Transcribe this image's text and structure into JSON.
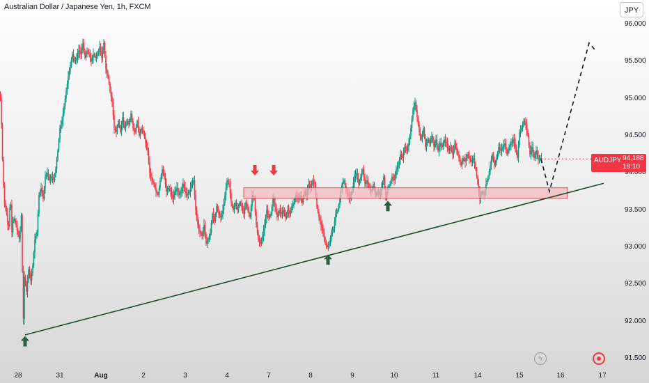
{
  "header": {
    "title": "Australian Dollar / Japanese Yen, 1h, FXCM"
  },
  "scale": {
    "currency": "JPY"
  },
  "price_label": {
    "symbol": "AUDJPY",
    "value": "94.188",
    "countdown": "18:10"
  },
  "icons": {
    "bolt": "lightning-icon",
    "target": "target-icon"
  },
  "colors": {
    "up": "#089981",
    "down": "#f23645",
    "arrow_up": "#2e5e3a",
    "arrow_down": "#f23645",
    "zone_fill": "#f5b8bc",
    "zone_border": "#e0505a",
    "trendline": "#1f4d2b"
  },
  "chart_data": {
    "type": "candlestick",
    "title": "Australian Dollar / Japanese Yen, 1h, FXCM",
    "ylim": [
      91.5,
      96.0
    ],
    "y_ticks": [
      "96.000",
      "95.500",
      "95.000",
      "94.500",
      "94.000",
      "93.500",
      "93.000",
      "92.500",
      "92.000",
      "91.500"
    ],
    "x_ticks": [
      {
        "label": "28",
        "bold": false
      },
      {
        "label": "31",
        "bold": false
      },
      {
        "label": "Aug",
        "bold": true
      },
      {
        "label": "2",
        "bold": false
      },
      {
        "label": "3",
        "bold": false
      },
      {
        "label": "4",
        "bold": false
      },
      {
        "label": "7",
        "bold": false
      },
      {
        "label": "8",
        "bold": false
      },
      {
        "label": "9",
        "bold": false
      },
      {
        "label": "10",
        "bold": false
      },
      {
        "label": "11",
        "bold": false
      },
      {
        "label": "14",
        "bold": false
      },
      {
        "label": "15",
        "bold": false
      },
      {
        "label": "16",
        "bold": false
      },
      {
        "label": "17",
        "bold": false
      }
    ],
    "path": [
      [
        0,
        95.05
      ],
      [
        2,
        95.0
      ],
      [
        4,
        94.3
      ],
      [
        7,
        93.6
      ],
      [
        10,
        93.5
      ],
      [
        13,
        93.2
      ],
      [
        16,
        93.7
      ],
      [
        18,
        93.2
      ],
      [
        20,
        93.4
      ],
      [
        23,
        93.35
      ],
      [
        26,
        93.2
      ],
      [
        29,
        93.1
      ],
      [
        32,
        93.5
      ],
      [
        34,
        91.85
      ],
      [
        36,
        92.6
      ],
      [
        39,
        92.4
      ],
      [
        42,
        92.7
      ],
      [
        45,
        92.55
      ],
      [
        48,
        92.75
      ],
      [
        51,
        93.1
      ],
      [
        54,
        93.2
      ],
      [
        57,
        93.7
      ],
      [
        60,
        93.8
      ],
      [
        63,
        93.65
      ],
      [
        66,
        93.95
      ],
      [
        69,
        94.0
      ],
      [
        72,
        93.9
      ],
      [
        75,
        93.95
      ],
      [
        78,
        93.9
      ],
      [
        81,
        94.05
      ],
      [
        84,
        94.3
      ],
      [
        87,
        94.6
      ],
      [
        90,
        94.7
      ],
      [
        93,
        94.9
      ],
      [
        96,
        95.1
      ],
      [
        99,
        95.3
      ],
      [
        102,
        95.45
      ],
      [
        105,
        95.6
      ],
      [
        108,
        95.5
      ],
      [
        111,
        95.55
      ],
      [
        114,
        95.65
      ],
      [
        117,
        95.6
      ],
      [
        120,
        95.75
      ],
      [
        123,
        95.55
      ],
      [
        126,
        95.65
      ],
      [
        129,
        95.6
      ],
      [
        132,
        95.5
      ],
      [
        135,
        95.6
      ],
      [
        138,
        95.55
      ],
      [
        141,
        95.6
      ],
      [
        144,
        95.7
      ],
      [
        147,
        95.55
      ],
      [
        150,
        95.75
      ],
      [
        153,
        95.4
      ],
      [
        156,
        95.3
      ],
      [
        159,
        95.1
      ],
      [
        162,
        94.95
      ],
      [
        165,
        94.6
      ],
      [
        168,
        94.55
      ],
      [
        171,
        94.7
      ],
      [
        174,
        94.55
      ],
      [
        177,
        94.75
      ],
      [
        180,
        94.6
      ],
      [
        183,
        94.7
      ],
      [
        186,
        94.65
      ],
      [
        189,
        94.8
      ],
      [
        192,
        94.6
      ],
      [
        195,
        94.55
      ],
      [
        198,
        94.7
      ],
      [
        201,
        94.5
      ],
      [
        204,
        94.6
      ],
      [
        207,
        94.55
      ],
      [
        210,
        94.4
      ],
      [
        213,
        94.3
      ],
      [
        216,
        94.0
      ],
      [
        219,
        93.9
      ],
      [
        222,
        93.85
      ],
      [
        225,
        93.75
      ],
      [
        228,
        93.7
      ],
      [
        231,
        93.9
      ],
      [
        234,
        94.05
      ],
      [
        237,
        93.95
      ],
      [
        240,
        93.75
      ],
      [
        243,
        93.8
      ],
      [
        246,
        93.75
      ],
      [
        249,
        93.65
      ],
      [
        252,
        93.75
      ],
      [
        255,
        93.8
      ],
      [
        258,
        93.7
      ],
      [
        261,
        93.75
      ],
      [
        264,
        93.85
      ],
      [
        267,
        93.75
      ],
      [
        270,
        93.7
      ],
      [
        273,
        93.75
      ],
      [
        276,
        93.85
      ],
      [
        279,
        93.9
      ],
      [
        282,
        93.5
      ],
      [
        285,
        93.3
      ],
      [
        288,
        93.2
      ],
      [
        291,
        93.15
      ],
      [
        294,
        93.3
      ],
      [
        297,
        93.05
      ],
      [
        300,
        93.1
      ],
      [
        303,
        93.2
      ],
      [
        306,
        93.45
      ],
      [
        309,
        93.35
      ],
      [
        312,
        93.55
      ],
      [
        315,
        93.45
      ],
      [
        318,
        93.4
      ],
      [
        321,
        93.5
      ],
      [
        324,
        93.7
      ],
      [
        327,
        93.9
      ],
      [
        330,
        93.85
      ],
      [
        333,
        93.6
      ],
      [
        336,
        93.5
      ],
      [
        339,
        93.6
      ],
      [
        342,
        93.5
      ],
      [
        345,
        93.6
      ],
      [
        348,
        93.55
      ],
      [
        351,
        93.45
      ],
      [
        354,
        93.6
      ],
      [
        357,
        93.5
      ],
      [
        360,
        93.4
      ],
      [
        363,
        93.7
      ],
      [
        366,
        93.65
      ],
      [
        369,
        93.3
      ],
      [
        372,
        93.1
      ],
      [
        375,
        93.05
      ],
      [
        378,
        93.15
      ],
      [
        381,
        93.3
      ],
      [
        384,
        93.5
      ],
      [
        387,
        93.4
      ],
      [
        390,
        93.45
      ],
      [
        393,
        93.65
      ],
      [
        396,
        93.55
      ],
      [
        399,
        93.4
      ],
      [
        402,
        93.5
      ],
      [
        405,
        93.45
      ],
      [
        408,
        93.5
      ],
      [
        411,
        93.4
      ],
      [
        414,
        93.5
      ],
      [
        417,
        93.45
      ],
      [
        420,
        93.55
      ],
      [
        423,
        93.6
      ],
      [
        426,
        93.7
      ],
      [
        429,
        93.65
      ],
      [
        432,
        93.7
      ],
      [
        435,
        93.6
      ],
      [
        438,
        93.75
      ],
      [
        441,
        93.7
      ],
      [
        444,
        93.85
      ],
      [
        447,
        93.8
      ],
      [
        450,
        93.9
      ],
      [
        453,
        93.85
      ],
      [
        456,
        93.55
      ],
      [
        459,
        93.4
      ],
      [
        462,
        93.3
      ],
      [
        465,
        93.2
      ],
      [
        468,
        93.05
      ],
      [
        471,
        93.0
      ],
      [
        474,
        93.05
      ],
      [
        477,
        93.2
      ],
      [
        480,
        93.25
      ],
      [
        483,
        93.45
      ],
      [
        486,
        93.5
      ],
      [
        489,
        93.65
      ],
      [
        492,
        93.85
      ],
      [
        495,
        93.9
      ],
      [
        498,
        93.75
      ],
      [
        501,
        93.7
      ],
      [
        504,
        93.65
      ],
      [
        507,
        93.8
      ],
      [
        510,
        93.95
      ],
      [
        513,
        94.0
      ],
      [
        516,
        93.85
      ],
      [
        519,
        93.95
      ],
      [
        522,
        94.05
      ],
      [
        525,
        93.85
      ],
      [
        528,
        93.9
      ],
      [
        531,
        93.8
      ],
      [
        534,
        93.75
      ],
      [
        537,
        93.85
      ],
      [
        540,
        93.7
      ],
      [
        543,
        93.75
      ],
      [
        546,
        93.7
      ],
      [
        549,
        93.8
      ],
      [
        552,
        93.95
      ],
      [
        555,
        93.65
      ],
      [
        558,
        93.8
      ],
      [
        561,
        93.85
      ],
      [
        564,
        93.95
      ],
      [
        567,
        93.9
      ],
      [
        570,
        94.05
      ],
      [
        573,
        94.1
      ],
      [
        576,
        94.25
      ],
      [
        579,
        94.2
      ],
      [
        582,
        94.35
      ],
      [
        585,
        94.3
      ],
      [
        588,
        94.4
      ],
      [
        591,
        94.6
      ],
      [
        594,
        94.85
      ],
      [
        597,
        94.95
      ],
      [
        600,
        94.75
      ],
      [
        603,
        94.55
      ],
      [
        606,
        94.45
      ],
      [
        609,
        94.6
      ],
      [
        612,
        94.35
      ],
      [
        615,
        94.45
      ],
      [
        618,
        94.4
      ],
      [
        621,
        94.5
      ],
      [
        624,
        94.35
      ],
      [
        627,
        94.45
      ],
      [
        630,
        94.3
      ],
      [
        633,
        94.4
      ],
      [
        636,
        94.35
      ],
      [
        639,
        94.45
      ],
      [
        642,
        94.4
      ],
      [
        645,
        94.3
      ],
      [
        648,
        94.35
      ],
      [
        651,
        94.25
      ],
      [
        654,
        94.4
      ],
      [
        657,
        94.3
      ],
      [
        660,
        94.2
      ],
      [
        663,
        94.1
      ],
      [
        666,
        94.2
      ],
      [
        669,
        94.15
      ],
      [
        672,
        94.25
      ],
      [
        675,
        94.2
      ],
      [
        678,
        94.15
      ],
      [
        681,
        94.2
      ],
      [
        684,
        94.05
      ],
      [
        687,
        93.85
      ],
      [
        690,
        93.65
      ],
      [
        693,
        93.75
      ],
      [
        696,
        93.7
      ],
      [
        699,
        93.85
      ],
      [
        702,
        93.95
      ],
      [
        705,
        94.1
      ],
      [
        708,
        94.25
      ],
      [
        711,
        94.1
      ],
      [
        714,
        94.2
      ],
      [
        717,
        94.35
      ],
      [
        720,
        94.3
      ],
      [
        723,
        94.35
      ],
      [
        726,
        94.4
      ],
      [
        729,
        94.25
      ],
      [
        732,
        94.35
      ],
      [
        735,
        94.4
      ],
      [
        738,
        94.45
      ],
      [
        741,
        94.35
      ],
      [
        744,
        94.2
      ],
      [
        747,
        94.55
      ],
      [
        750,
        94.6
      ],
      [
        753,
        94.7
      ],
      [
        756,
        94.65
      ],
      [
        759,
        94.5
      ],
      [
        762,
        94.25
      ],
      [
        765,
        94.35
      ],
      [
        768,
        94.2
      ],
      [
        771,
        94.3
      ],
      [
        774,
        94.18
      ],
      [
        777,
        94.2
      ]
    ],
    "support_zone": {
      "x_from": 350,
      "x_to": 815,
      "y_low": 93.66,
      "y_high": 93.8
    },
    "trendline": {
      "from": [
        36,
        91.82
      ],
      "to": [
        867,
        93.86
      ]
    },
    "projection": [
      [
        777,
        94.188
      ],
      [
        789,
        93.75
      ],
      [
        846,
        95.75
      ],
      [
        855,
        95.65
      ]
    ],
    "annotations": [
      {
        "type": "arrow-up",
        "x": 36,
        "y": 91.72
      },
      {
        "type": "arrow-down",
        "x": 366,
        "y": 94.05
      },
      {
        "type": "arrow-down",
        "x": 393,
        "y": 94.05
      },
      {
        "type": "arrow-up",
        "x": 471,
        "y": 92.82
      },
      {
        "type": "arrow-up",
        "x": 557,
        "y": 93.54
      }
    ]
  }
}
